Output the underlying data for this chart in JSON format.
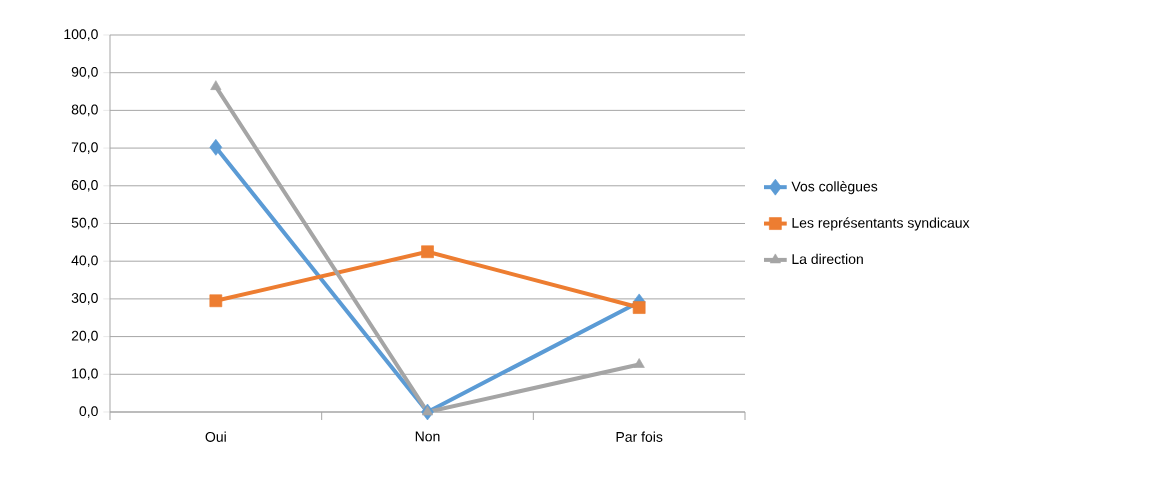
{
  "chart_data": {
    "type": "line",
    "categories": [
      "Oui",
      "Non",
      "Par fois"
    ],
    "series": [
      {
        "name": "Vos collègues",
        "color": "#5b9bd5",
        "marker": "diamond",
        "values": [
          70.2,
          0,
          29.2
        ]
      },
      {
        "name": "Les représentants syndicaux",
        "color": "#ed7d31",
        "marker": "square",
        "values": [
          29.5,
          42.5,
          27.7
        ]
      },
      {
        "name": "La direction",
        "color": "#a5a5a5",
        "marker": "triangle",
        "values": [
          86.3,
          0,
          12.6
        ]
      }
    ],
    "ylim": [
      0,
      100
    ],
    "yticks": [
      {
        "value": 0,
        "label": "0,0"
      },
      {
        "value": 10,
        "label": "10,0"
      },
      {
        "value": 20,
        "label": "20,0"
      },
      {
        "value": 30,
        "label": "30,0"
      },
      {
        "value": 40,
        "label": "40,0"
      },
      {
        "value": 50,
        "label": "50,0"
      },
      {
        "value": 60,
        "label": "60,0"
      },
      {
        "value": 70,
        "label": "70,0"
      },
      {
        "value": 80,
        "label": "80,0"
      },
      {
        "value": 90,
        "label": "90,0"
      },
      {
        "value": 100,
        "label": "100,0"
      }
    ],
    "grid": "y",
    "legend": "right",
    "line_style": "solid"
  }
}
